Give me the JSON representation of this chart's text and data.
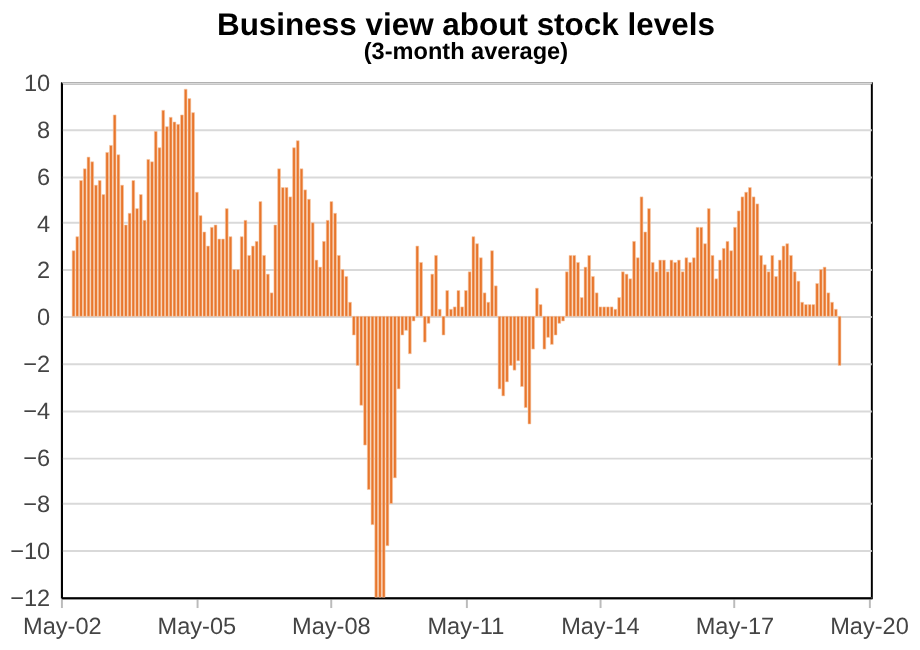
{
  "chart_data": {
    "type": "bar",
    "title": "Business view about stock levels",
    "subtitle": "(3-month  average)",
    "categories": [
      "May-02",
      null,
      null,
      null,
      null,
      null,
      null,
      null,
      null,
      null,
      null,
      null,
      null,
      null,
      null,
      null,
      null,
      null,
      null,
      null,
      null,
      null,
      null,
      null,
      null,
      null,
      null,
      null,
      null,
      null,
      null,
      null,
      null,
      null,
      null,
      null,
      "May-05",
      null,
      null,
      null,
      null,
      null,
      null,
      null,
      null,
      null,
      null,
      null,
      null,
      null,
      null,
      null,
      null,
      null,
      null,
      null,
      null,
      null,
      null,
      null,
      null,
      null,
      null,
      null,
      null,
      null,
      null,
      null,
      null,
      null,
      null,
      null,
      "May-08",
      null,
      null,
      null,
      null,
      null,
      null,
      null,
      null,
      null,
      null,
      null,
      null,
      null,
      null,
      null,
      null,
      null,
      null,
      null,
      null,
      null,
      null,
      null,
      null,
      null,
      null,
      null,
      null,
      null,
      null,
      null,
      null,
      null,
      null,
      null,
      "May-11",
      null,
      null,
      null,
      null,
      null,
      null,
      null,
      null,
      null,
      null,
      null,
      null,
      null,
      null,
      null,
      null,
      null,
      null,
      null,
      null,
      null,
      null,
      null,
      null,
      null,
      null,
      null,
      null,
      null,
      null,
      null,
      null,
      null,
      null,
      null,
      "May-14",
      null,
      null,
      null,
      null,
      null,
      null,
      null,
      null,
      null,
      null,
      null,
      null,
      null,
      null,
      null,
      null,
      null,
      null,
      null,
      null,
      null,
      null,
      null,
      null,
      null,
      null,
      null,
      null,
      null,
      null,
      null,
      null,
      null,
      null,
      null,
      "May-17",
      null,
      null,
      null,
      null,
      null,
      null,
      null,
      null,
      null,
      null,
      null,
      null,
      null,
      null,
      null,
      null,
      null,
      null,
      null,
      null,
      null,
      null,
      null,
      null,
      null,
      null,
      null,
      null,
      null,
      null,
      null,
      null,
      null,
      null,
      null,
      "May-20"
    ],
    "series": [
      {
        "color": "#e8762c",
        "values": [
          null,
          null,
          null,
          2.8,
          3.4,
          5.8,
          6.3,
          6.8,
          6.6,
          5.6,
          5.8,
          5.2,
          7.0,
          7.3,
          8.6,
          6.9,
          5.6,
          3.9,
          4.4,
          5.8,
          4.6,
          5.2,
          4.1,
          6.7,
          6.6,
          7.9,
          7.2,
          8.8,
          8.1,
          8.5,
          8.3,
          8.2,
          8.6,
          9.7,
          9.3,
          8.7,
          5.3,
          4.3,
          3.6,
          3.0,
          3.8,
          3.9,
          3.3,
          3.3,
          4.6,
          3.4,
          2.0,
          2.0,
          3.4,
          4.1,
          2.6,
          3.0,
          3.2,
          4.9,
          2.6,
          1.8,
          1.0,
          3.9,
          6.3,
          5.5,
          5.5,
          5.1,
          7.2,
          7.5,
          6.3,
          5.4,
          5.0,
          4.0,
          2.4,
          2.1,
          3.2,
          4.1,
          4.9,
          4.4,
          2.6,
          2.0,
          1.7,
          0.6,
          -0.8,
          -2.1,
          -3.8,
          -5.5,
          -7.4,
          -8.9,
          -12,
          -12,
          -12,
          -9.8,
          -8.0,
          -6.9,
          -3.1,
          -0.8,
          -0.6,
          -1.6,
          -0.2,
          3.0,
          2.3,
          -1.1,
          -0.3,
          1.8,
          2.6,
          0.3,
          -0.8,
          1.1,
          0.3,
          0.4,
          1.1,
          0.4,
          1.1,
          1.9,
          3.4,
          3.1,
          2.5,
          1.0,
          0.6,
          2.8,
          1.3,
          -3.1,
          -3.4,
          -2.8,
          -2.1,
          -2.3,
          -1.9,
          -3.0,
          -3.9,
          -4.6,
          -1.4,
          1.2,
          0.5,
          -1.4,
          -0.9,
          -1.2,
          -0.8,
          -0.3,
          -0.2,
          1.9,
          2.6,
          2.6,
          2.3,
          0.8,
          2.1,
          2.6,
          1.7,
          1.0,
          0.4,
          0.4,
          0.4,
          0.4,
          0.3,
          0.8,
          1.9,
          1.8,
          1.6,
          3.2,
          2.5,
          5.1,
          3.6,
          4.6,
          2.3,
          1.9,
          2.4,
          2.4,
          1.9,
          2.4,
          2.3,
          2.4,
          1.9,
          2.5,
          2.3,
          2.5,
          3.8,
          3.8,
          3.1,
          4.6,
          2.6,
          1.6,
          2.4,
          2.9,
          3.2,
          2.8,
          3.8,
          4.5,
          5.1,
          5.3,
          5.5,
          5.1,
          4.8,
          2.6,
          2.2,
          1.9,
          2.6,
          1.7,
          2.4,
          3.0,
          3.1,
          2.6,
          1.9,
          1.5,
          0.6,
          0.5,
          0.5,
          0.5,
          1.4,
          2.0,
          2.1,
          1.0,
          0.6,
          0.3,
          -2.1,
          null,
          null,
          null,
          null,
          null,
          null,
          null,
          null
        ]
      }
    ],
    "ylim": [
      -12,
      10
    ],
    "yticks": [
      -12,
      -10,
      -8,
      -6,
      -4,
      -2,
      0,
      2,
      4,
      6,
      8,
      10
    ],
    "grid": "y",
    "legend": false
  }
}
